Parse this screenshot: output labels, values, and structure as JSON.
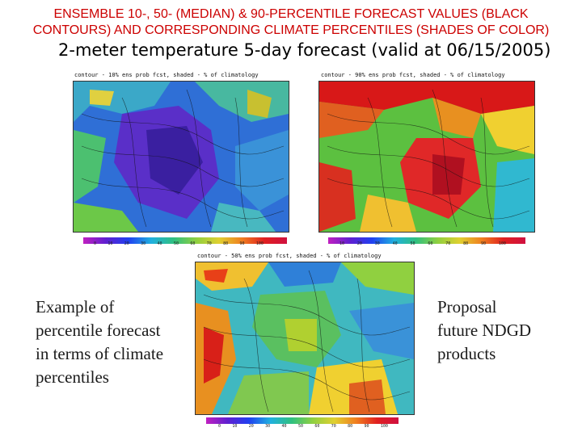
{
  "header": {
    "line1": "ENSEMBLE 10-, 50- (MEDIAN) & 90-PERCENTILE FORECAST VALUES (BLACK",
    "line2": "CONTOURS) AND CORRESPONDING CLIMATE PERCENTILES (SHADES OF COLOR)",
    "color": "#cc0000"
  },
  "subtitle": "2-meter temperature 5-day forecast (valid at 06/15/2005)",
  "maps": {
    "left": {
      "caption": "contour - 10% ens prob fcst, shaded - % of climatology"
    },
    "right": {
      "caption": "contour - 90% ens prob fcst, shaded - % of climatology"
    },
    "bottom": {
      "caption": "contour - 50% ens prob fcst, shaded - % of climatology"
    }
  },
  "scale_ticks": [
    "0",
    "10",
    "20",
    "30",
    "40",
    "50",
    "60",
    "70",
    "80",
    "90",
    "100"
  ],
  "left_text": [
    "Example of",
    "percentile forecast",
    "in terms of climate",
    "percentiles"
  ],
  "right_text": [
    "Proposal",
    "future NDGD",
    "products"
  ]
}
